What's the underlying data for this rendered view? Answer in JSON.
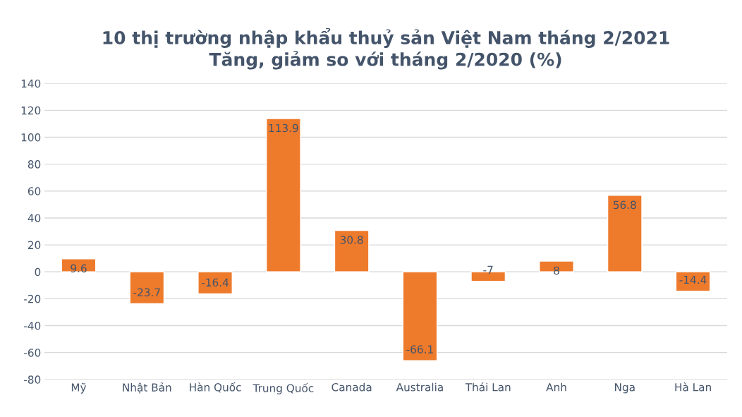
{
  "chart_data": {
    "type": "bar",
    "title": "10 thị trường nhập khẩu thuỷ sản Việt Nam tháng 2/2021\nTăng, giảm so với tháng 2/2020 (%)",
    "categories": [
      "Mỹ",
      "Nhật Bản",
      "Hàn Quốc",
      "Trung Quốc",
      "Canada",
      "Australia",
      "Thái Lan",
      "Anh",
      "Nga",
      "Hà Lan"
    ],
    "values": [
      9.6,
      -23.7,
      -16.4,
      113.9,
      30.8,
      -66.1,
      -7,
      8,
      56.8,
      -14.4
    ],
    "color": "#ee7a2c",
    "ylim": [
      -80,
      140
    ],
    "yticks": [
      -80,
      -60,
      -40,
      -20,
      0,
      20,
      40,
      60,
      80,
      100,
      120,
      140
    ],
    "grid": "y",
    "data_labels": true
  }
}
